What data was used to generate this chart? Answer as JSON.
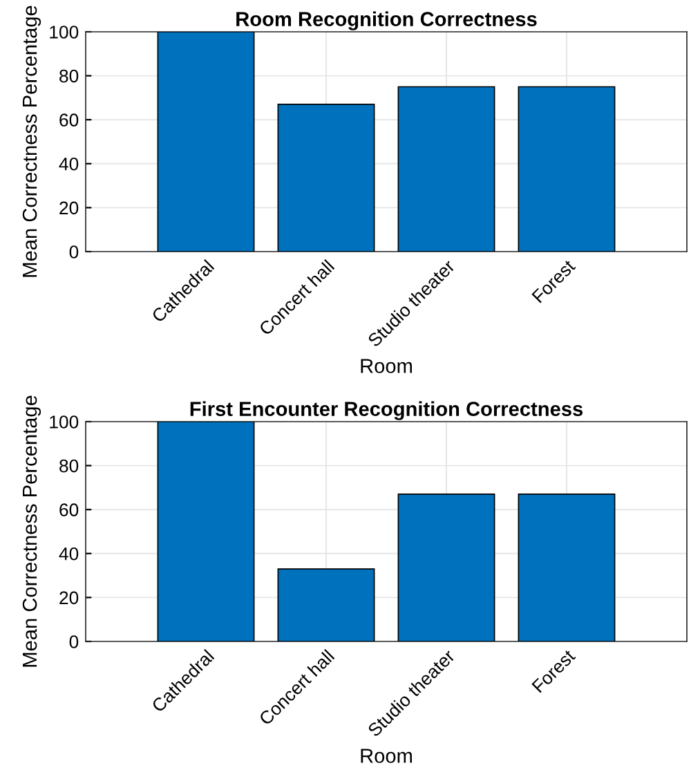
{
  "chart_data": [
    {
      "type": "bar",
      "title": "Room Recognition Correctness",
      "xlabel": "Room",
      "ylabel": "Mean Correctness Percentage",
      "categories": [
        "Cathedral",
        "Concert hall",
        "Studio theater",
        "Forest"
      ],
      "values": [
        100,
        67,
        75,
        75
      ],
      "color": "#0072bd",
      "ylim": [
        0,
        100
      ],
      "yticks": [
        0,
        20,
        40,
        60,
        80,
        100
      ],
      "grid": true
    },
    {
      "type": "bar",
      "title": "First Encounter Recognition Correctness",
      "xlabel": "Room",
      "ylabel": "Mean Correctness Percentage",
      "categories": [
        "Cathedral",
        "Concert hall",
        "Studio theater",
        "Forest"
      ],
      "values": [
        100,
        33,
        67,
        67
      ],
      "color": "#0072bd",
      "ylim": [
        0,
        100
      ],
      "yticks": [
        0,
        20,
        40,
        60,
        80,
        100
      ],
      "grid": true
    }
  ]
}
